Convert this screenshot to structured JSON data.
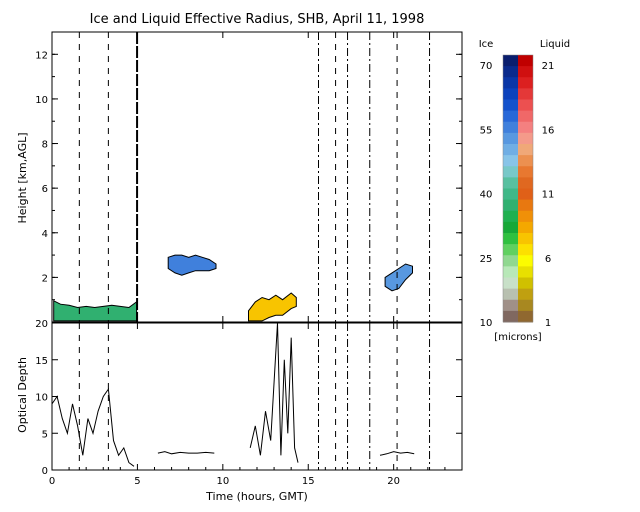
{
  "figure": {
    "title": "Ice and Liquid Effective Radius, SHB, April 11, 1998",
    "top_ylabel": "Height [km,AGL]",
    "bottom_ylabel": "Optical Depth",
    "xlabel": "Time (hours, GMT)"
  },
  "colorbar": {
    "ice_label": "Ice",
    "liquid_label": "Liquid",
    "units": "[microns]",
    "ice_ticks": [
      "70",
      "55",
      "40",
      "25",
      "10"
    ],
    "liquid_ticks": [
      "21",
      "16",
      "11",
      "6",
      "1"
    ],
    "ice_colors": [
      "#0a1e6e",
      "#0a2a8c",
      "#0a36a6",
      "#0c42bc",
      "#1452cc",
      "#2868d8",
      "#4080dc",
      "#5898e0",
      "#70aee4",
      "#88c4e8",
      "#78c8c8",
      "#58c0a0",
      "#40b888",
      "#30b070",
      "#20b050",
      "#18a838",
      "#30c040",
      "#60d060",
      "#90d890",
      "#b8e8b8",
      "#c8e0c8",
      "#b8c0b0",
      "#a09088",
      "#806860"
    ],
    "liq_colors": [
      "#c00000",
      "#d01010",
      "#dc2020",
      "#e43838",
      "#ec5050",
      "#f06868",
      "#f48080",
      "#f49a8a",
      "#f0a878",
      "#ec9050",
      "#e87830",
      "#e06820",
      "#e06018",
      "#e87810",
      "#f09008",
      "#f4a800",
      "#f8c400",
      "#fce000",
      "#fcfc00",
      "#e8e000",
      "#d0c000",
      "#c0a010",
      "#a88820",
      "#906830"
    ]
  },
  "chart_data": [
    {
      "type": "heatmap",
      "title": "Ice and Liquid Effective Radius, SHB, April 11, 1998",
      "xlabel": "",
      "ylabel": "Height [km,AGL]",
      "xlim": [
        0,
        24
      ],
      "ylim": [
        0,
        13
      ],
      "x_ticks": [
        0,
        5,
        10,
        15,
        20
      ],
      "y_ticks": [
        2,
        4,
        6,
        8,
        10,
        12
      ],
      "dashed_lines": [
        1.6,
        3.3,
        16.6,
        20.2
      ],
      "dashdot_lines": [
        15.6,
        17.3,
        18.6,
        22.1
      ],
      "features": [
        {
          "phase": "ice",
          "x": [
            0.1,
            0.5,
            1.0,
            1.5,
            2.0,
            2.5,
            3.0,
            3.5,
            4.0,
            4.5,
            4.95
          ],
          "top_km": [
            0.95,
            0.8,
            0.75,
            0.65,
            0.7,
            0.65,
            0.7,
            0.75,
            0.7,
            0.65,
            0.9
          ],
          "base_km": 0.05,
          "radius_um": 36
        },
        {
          "phase": "ice",
          "x": [
            6.8,
            7.2,
            7.6,
            8.0,
            8.4,
            8.8,
            9.2,
            9.6
          ],
          "top_km": [
            2.9,
            3.0,
            3.0,
            2.9,
            3.0,
            2.9,
            2.8,
            2.6
          ],
          "base_km": [
            2.4,
            2.2,
            2.1,
            2.2,
            2.3,
            2.3,
            2.3,
            2.4
          ],
          "radius_um": 55
        },
        {
          "phase": "liquid",
          "x": [
            11.5,
            11.9,
            12.3,
            12.7,
            13.1,
            13.5,
            14.0,
            14.3
          ],
          "top_km": [
            0.5,
            0.9,
            1.1,
            1.0,
            1.2,
            1.0,
            1.3,
            1.1
          ],
          "base_km": [
            0.05,
            0.05,
            0.05,
            0.2,
            0.3,
            0.3,
            0.6,
            0.7
          ],
          "radius_um": 7
        },
        {
          "phase": "ice",
          "x": [
            19.5,
            19.9,
            20.3,
            20.7,
            21.1
          ],
          "top_km": [
            2.0,
            2.2,
            2.4,
            2.6,
            2.5
          ],
          "base_km": [
            1.6,
            1.4,
            1.5,
            1.9,
            2.2
          ],
          "radius_um": 52
        }
      ]
    },
    {
      "type": "line",
      "title": "",
      "xlabel": "Time (hours, GMT)",
      "ylabel": "Optical Depth",
      "xlim": [
        0,
        24
      ],
      "ylim": [
        0,
        20
      ],
      "x_ticks": [
        0,
        5,
        10,
        15,
        20
      ],
      "y_ticks": [
        0,
        5,
        10,
        15,
        20
      ],
      "series": [
        {
          "x": [
            0,
            0.3,
            0.6,
            0.9,
            1.2,
            1.5,
            1.8,
            2.1,
            2.4,
            2.7,
            3.0,
            3.3,
            3.6,
            3.9,
            4.2,
            4.5,
            4.8
          ],
          "y": [
            9,
            10,
            7,
            5,
            9,
            6,
            2,
            7,
            5,
            8,
            10,
            11,
            4,
            2,
            3,
            1,
            0.5
          ]
        },
        {
          "x": [
            6.2,
            6.6,
            7.0,
            7.5,
            8.0,
            8.5,
            9.0,
            9.5
          ],
          "y": [
            2.3,
            2.5,
            2.2,
            2.4,
            2.3,
            2.3,
            2.4,
            2.3
          ]
        },
        {
          "x": [
            11.6,
            11.9,
            12.2,
            12.5,
            12.8,
            13.0,
            13.2,
            13.4,
            13.6,
            13.8,
            14.0,
            14.2,
            14.4
          ],
          "y": [
            3,
            6,
            2,
            8,
            4,
            12,
            20,
            2,
            15,
            5,
            18,
            3,
            1
          ]
        },
        {
          "x": [
            19.2,
            19.6,
            20.0,
            20.4,
            20.8,
            21.2
          ],
          "y": [
            2.0,
            2.2,
            2.5,
            2.3,
            2.4,
            2.2
          ]
        }
      ]
    }
  ]
}
